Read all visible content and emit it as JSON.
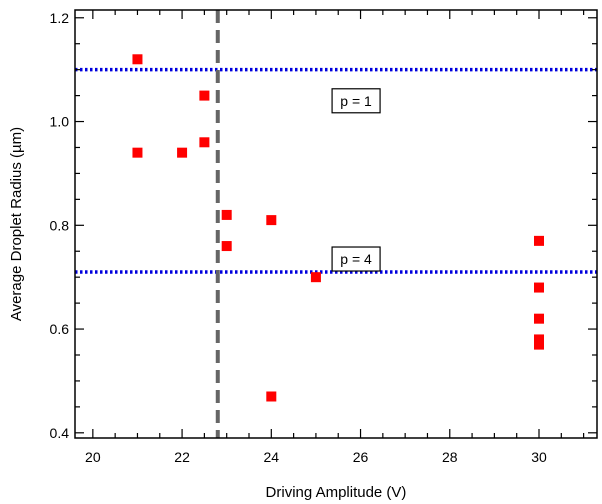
{
  "chart_data": {
    "type": "scatter",
    "title": "",
    "xlabel": "Driving Amplitude (V)",
    "ylabel": "Average Droplet Radius (µm)",
    "xlim": [
      19.6,
      31.3
    ],
    "ylim": [
      0.39,
      1.215
    ],
    "x_ticks": [
      20,
      22,
      24,
      26,
      28,
      30
    ],
    "y_ticks": [
      0.4,
      0.6,
      0.8,
      1.0,
      1.2
    ],
    "x_tick_labels": [
      "20",
      "22",
      "24",
      "26",
      "28",
      "30"
    ],
    "y_tick_labels": [
      "0.4",
      "0.6",
      "0.8",
      "1.0",
      "1.2"
    ],
    "x_minor_step": 0.5,
    "y_minor_step": 0.05,
    "grid": false,
    "series": [
      {
        "color": "#ff0000",
        "marker": "square",
        "points": [
          {
            "x": 21,
            "y": 1.12
          },
          {
            "x": 21,
            "y": 0.94
          },
          {
            "x": 22,
            "y": 0.94
          },
          {
            "x": 22.5,
            "y": 1.05
          },
          {
            "x": 22.5,
            "y": 0.96
          },
          {
            "x": 23,
            "y": 0.82
          },
          {
            "x": 23,
            "y": 0.76
          },
          {
            "x": 24,
            "y": 0.81
          },
          {
            "x": 24,
            "y": 0.47
          },
          {
            "x": 25,
            "y": 0.7
          },
          {
            "x": 30,
            "y": 0.77
          },
          {
            "x": 30,
            "y": 0.68
          },
          {
            "x": 30,
            "y": 0.62
          },
          {
            "x": 30,
            "y": 0.58
          },
          {
            "x": 30,
            "y": 0.57
          }
        ]
      }
    ],
    "reference_lines": [
      {
        "orientation": "horizontal",
        "value": 1.1,
        "style": "dotted",
        "color": "#0000dd",
        "label": "p = 1",
        "label_x": 25.9,
        "label_y": 1.04
      },
      {
        "orientation": "horizontal",
        "value": 0.71,
        "style": "dotted",
        "color": "#0000dd",
        "label": "p = 4",
        "label_x": 25.9,
        "label_y": 0.735
      },
      {
        "orientation": "vertical",
        "value": 22.8,
        "style": "dashed",
        "color": "#666666"
      }
    ]
  }
}
